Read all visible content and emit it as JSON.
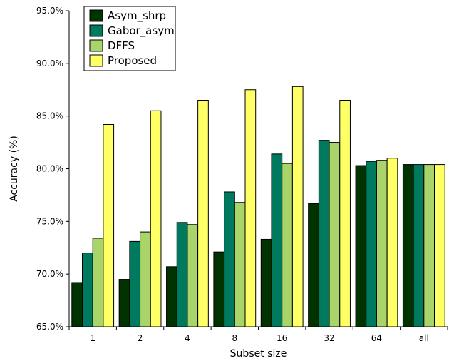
{
  "chart_data": {
    "type": "bar",
    "title": "",
    "xlabel": "Subset size",
    "ylabel": "Accuracy (%)",
    "ylim": [
      65.0,
      95.0
    ],
    "yticks": [
      65.0,
      70.0,
      75.0,
      80.0,
      85.0,
      90.0,
      95.0
    ],
    "ytick_labels": [
      "65.0%",
      "70.0%",
      "75.0%",
      "80.0%",
      "85.0%",
      "90.0%",
      "95.0%"
    ],
    "categories": [
      "1",
      "2",
      "4",
      "8",
      "16",
      "32",
      "64",
      "all"
    ],
    "legend_position": "top-left",
    "grid": false,
    "series": [
      {
        "name": "Asym_shrp",
        "color": "#003300",
        "values": [
          69.2,
          69.5,
          70.7,
          72.1,
          73.3,
          76.7,
          80.3,
          80.4
        ]
      },
      {
        "name": "Gabor_asym",
        "color": "#007a5e",
        "values": [
          72.0,
          73.1,
          74.9,
          77.8,
          81.4,
          82.7,
          80.7,
          80.4
        ]
      },
      {
        "name": "DFFS",
        "color": "#a8d46a",
        "values": [
          73.4,
          74.0,
          74.7,
          76.8,
          80.5,
          82.5,
          80.8,
          80.4
        ]
      },
      {
        "name": "Proposed",
        "color": "#ffff66",
        "values": [
          84.2,
          85.5,
          86.5,
          87.5,
          87.8,
          86.5,
          81.0,
          80.4
        ]
      }
    ]
  }
}
